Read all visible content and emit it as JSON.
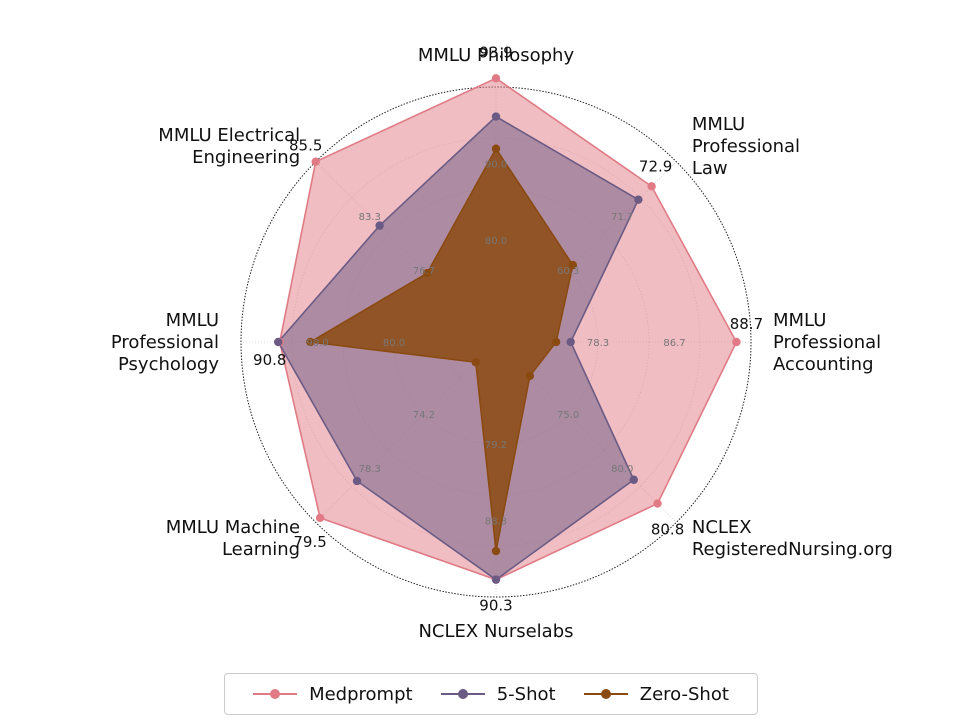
{
  "chart_data": {
    "type": "radar",
    "axes": [
      "MMLU Philosophy",
      "MMLU Professional Law",
      "MMLU Professional Accounting",
      "NCLEX RegisteredNursing.org",
      "NCLEX Nurselabs",
      "MMLU Machine Learning",
      "MMLU Professional Psychology",
      "MMLU Electrical Engineering"
    ],
    "axis_label_lines": [
      [
        "MMLU Philosophy"
      ],
      [
        "MMLU",
        "Professional",
        "Law"
      ],
      [
        "MMLU",
        "Professional",
        "Accounting"
      ],
      [
        "NCLEX",
        "RegisteredNursing.org"
      ],
      [
        "NCLEX Nurselabs"
      ],
      [
        "MMLU Machine",
        "Learning"
      ],
      [
        "MMLU",
        "Professional",
        "Psychology"
      ],
      [
        "MMLU Electrical",
        "Engineering"
      ]
    ],
    "ring_labels": [
      [
        "80.0",
        "90.0"
      ],
      [
        "60.3",
        "71.7"
      ],
      [
        "78.3",
        "86.7"
      ],
      [
        "75.0",
        "80.0"
      ],
      [
        "79.2",
        "88.3"
      ],
      [
        "74.2",
        "78.3"
      ],
      [
        "80.0",
        "90.0"
      ],
      [
        "76.7",
        "83.3"
      ]
    ],
    "series": [
      {
        "name": "Medprompt",
        "color": "#e07b86",
        "values": [
          93.9,
          72.9,
          88.7,
          80.8,
          90.3,
          79.5,
          90.8,
          85.5
        ]
      },
      {
        "name": "5-Shot",
        "color": "#6b5b84",
        "values": [
          91.4,
          71.5,
          79.6,
          79.7,
          90.3,
          78.1,
          90.9,
          81.6
        ]
      },
      {
        "name": "Zero-Shot",
        "color": "#8b4a12",
        "values": [
          89.3,
          64.6,
          78.8,
          74.9,
          88.6,
          73.6,
          88.8,
          78.7
        ]
      }
    ],
    "value_labels": [
      "93.9",
      "72.9",
      "88.7",
      "80.8",
      "90.3",
      "79.5",
      "90.8",
      "85.5"
    ],
    "legend": {
      "placement": "bottom",
      "entries": [
        "Medprompt",
        "5-Shot",
        "Zero-Shot"
      ]
    }
  }
}
